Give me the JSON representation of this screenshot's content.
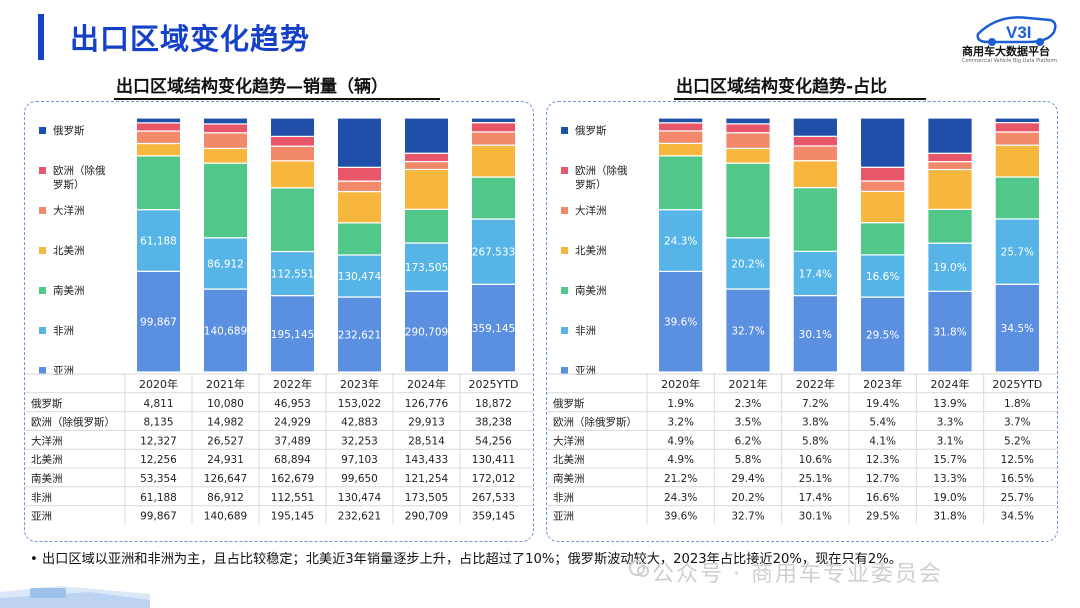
{
  "page": {
    "title": "出口区域变化趋势",
    "logo_text": "V3I",
    "logo_cn": "商用车大数据平台",
    "logo_en": "Commercial Vehicle Big Data Platform",
    "summary": "• 出口区域以亚洲和非洲为主，且占比较稳定；北美近3年销量逐步上升，占比超过了10%；俄罗斯波动较大，2023年占比接近20%，现在只有2%。",
    "watermark": "公众号 · 商用车专业委员会"
  },
  "colors": {
    "俄罗斯": "#1f4fa8",
    "欧洲（除俄罗斯）": "#e8566a",
    "大洋洲": "#f2896b",
    "北美洲": "#f7b73e",
    "南美洲": "#52c78a",
    "非洲": "#56b4e6",
    "亚洲": "#5b8fe0",
    "title_blue": "#1540c8"
  },
  "chart_data": [
    {
      "type": "bar",
      "stacked": true,
      "title": "出口区域结构变化趋势—销量（辆）",
      "categories": [
        "2020年",
        "2021年",
        "2022年",
        "2023年",
        "2024年",
        "2025YTD"
      ],
      "legend_labels": [
        "俄罗斯",
        "欧洲（除俄罗斯）",
        "大洋洲",
        "北美洲",
        "南美洲",
        "非洲",
        "亚洲"
      ],
      "table_labels": [
        "俄罗斯",
        "欧洲（除俄罗斯）",
        "大洋洲",
        "北美洲",
        "南美洲",
        "非洲",
        "亚洲"
      ],
      "series": [
        {
          "name": "俄罗斯",
          "values": [
            4811,
            10080,
            46953,
            153022,
            126776,
            18872
          ],
          "display": [
            "4,811",
            "10,080",
            "46,953",
            "153,022",
            "126,776",
            "18,872"
          ]
        },
        {
          "name": "欧洲（除俄罗斯）",
          "values": [
            8135,
            14982,
            24929,
            42883,
            29913,
            38238
          ],
          "display": [
            "8,135",
            "14,982",
            "24,929",
            "42,883",
            "29,913",
            "38,238"
          ]
        },
        {
          "name": "大洋洲",
          "values": [
            12327,
            26527,
            37489,
            32253,
            28514,
            54256
          ],
          "display": [
            "12,327",
            "26,527",
            "37,489",
            "32,253",
            "28,514",
            "54,256"
          ]
        },
        {
          "name": "北美洲",
          "values": [
            12256,
            24931,
            68894,
            97103,
            143433,
            130411
          ],
          "display": [
            "12,256",
            "24,931",
            "68,894",
            "97,103",
            "143,433",
            "130,411"
          ]
        },
        {
          "name": "南美洲",
          "values": [
            53354,
            126647,
            162679,
            99650,
            121254,
            172012
          ],
          "display": [
            "53,354",
            "126,647",
            "162,679",
            "99,650",
            "121,254",
            "172,012"
          ]
        },
        {
          "name": "非洲",
          "values": [
            61188,
            86912,
            112551,
            130474,
            173505,
            267533
          ],
          "display": [
            "61,188",
            "86,912",
            "112,551",
            "130,474",
            "173,505",
            "267,533"
          ]
        },
        {
          "name": "亚洲",
          "values": [
            99867,
            140689,
            195145,
            232621,
            290709,
            359145
          ],
          "display": [
            "99,867",
            "140,689",
            "195,145",
            "232,621",
            "290,709",
            "359,145"
          ]
        }
      ],
      "data_labels_on": [
        "非洲",
        "亚洲"
      ]
    },
    {
      "type": "bar",
      "stacked": true,
      "percent": true,
      "title": "出口区域结构变化趋势-占比",
      "categories": [
        "2020年",
        "2021年",
        "2022年",
        "2023年",
        "2024年",
        "2025YTD"
      ],
      "legend_labels": [
        "俄罗斯",
        "欧洲（除俄罗斯）",
        "大洋洲",
        "北美洲",
        "南美洲",
        "非洲",
        "亚洲"
      ],
      "table_labels": [
        "俄罗斯",
        "欧洲（除俄罗斯）",
        "大洋洲",
        "北美洲",
        "南美洲",
        "非洲",
        "亚洲"
      ],
      "series": [
        {
          "name": "俄罗斯",
          "values": [
            1.9,
            2.3,
            7.2,
            19.4,
            13.9,
            1.8
          ],
          "display": [
            "1.9%",
            "2.3%",
            "7.2%",
            "19.4%",
            "13.9%",
            "1.8%"
          ]
        },
        {
          "name": "欧洲（除俄罗斯）",
          "values": [
            3.2,
            3.5,
            3.8,
            5.4,
            3.3,
            3.7
          ],
          "display": [
            "3.2%",
            "3.5%",
            "3.8%",
            "5.4%",
            "3.3%",
            "3.7%"
          ]
        },
        {
          "name": "大洋洲",
          "values": [
            4.9,
            6.2,
            5.8,
            4.1,
            3.1,
            5.2
          ],
          "display": [
            "4.9%",
            "6.2%",
            "5.8%",
            "4.1%",
            "3.1%",
            "5.2%"
          ]
        },
        {
          "name": "北美洲",
          "values": [
            4.9,
            5.8,
            10.6,
            12.3,
            15.7,
            12.5
          ],
          "display": [
            "4.9%",
            "5.8%",
            "10.6%",
            "12.3%",
            "15.7%",
            "12.5%"
          ]
        },
        {
          "name": "南美洲",
          "values": [
            21.2,
            29.4,
            25.1,
            12.7,
            13.3,
            16.5
          ],
          "display": [
            "21.2%",
            "29.4%",
            "25.1%",
            "12.7%",
            "13.3%",
            "16.5%"
          ]
        },
        {
          "name": "非洲",
          "values": [
            24.3,
            20.2,
            17.4,
            16.6,
            19.0,
            25.7
          ],
          "display": [
            "24.3%",
            "20.2%",
            "17.4%",
            "16.6%",
            "19.0%",
            "25.7%"
          ]
        },
        {
          "name": "亚洲",
          "values": [
            39.6,
            32.7,
            30.1,
            29.5,
            31.8,
            34.5
          ],
          "display": [
            "39.6%",
            "32.7%",
            "30.1%",
            "29.5%",
            "31.8%",
            "34.5%"
          ]
        }
      ],
      "data_labels_on": [
        "非洲",
        "亚洲"
      ]
    }
  ]
}
